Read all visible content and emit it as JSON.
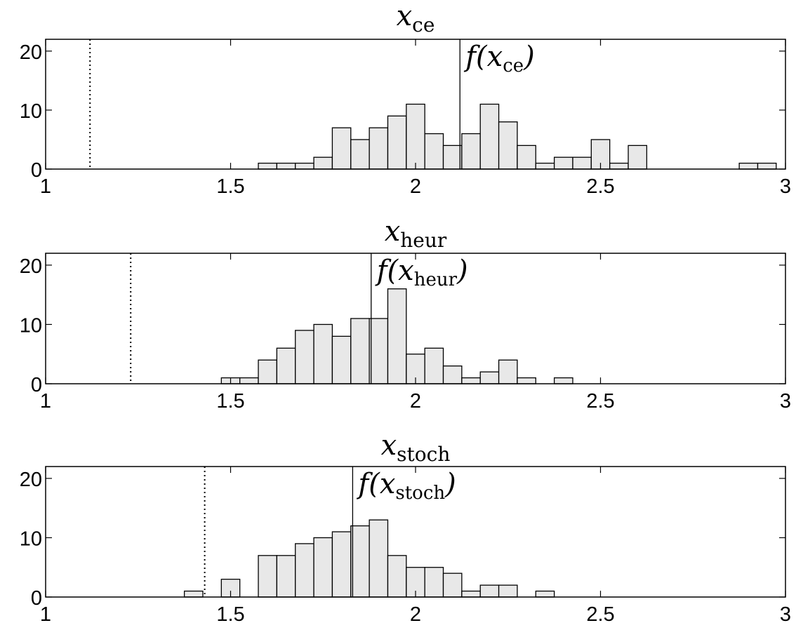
{
  "chart_data": [
    {
      "type": "bar",
      "title": {
        "base": "x",
        "sub": "ce"
      },
      "annotation": {
        "prefix": "f(",
        "base": "x",
        "sub": "ce",
        "suffix": ")"
      },
      "xlim": [
        1,
        3
      ],
      "ylim": [
        0,
        22
      ],
      "xticks": [
        1,
        1.5,
        2,
        2.5,
        3
      ],
      "xtick_labels": [
        "1",
        "1.5",
        "2",
        "2.5",
        "3"
      ],
      "yticks": [
        0,
        10,
        20
      ],
      "ytick_labels": [
        "0",
        "10",
        "20"
      ],
      "bin_width": 0.05,
      "bin_centers": [
        1.6,
        1.65,
        1.7,
        1.75,
        1.8,
        1.85,
        1.9,
        1.95,
        2.0,
        2.05,
        2.1,
        2.15,
        2.2,
        2.25,
        2.3,
        2.35,
        2.4,
        2.45,
        2.5,
        2.55,
        2.6,
        2.9,
        2.95
      ],
      "counts": [
        1,
        1,
        1,
        2,
        7,
        5,
        7,
        9,
        11,
        6,
        4,
        6,
        11,
        8,
        4,
        1,
        2,
        2,
        5,
        1,
        4,
        1,
        1
      ],
      "solid_line_x": 2.12,
      "dotted_line_x": 1.12
    },
    {
      "type": "bar",
      "title": {
        "base": "x",
        "sub": "heur"
      },
      "annotation": {
        "prefix": "f(",
        "base": "x",
        "sub": "heur",
        "suffix": ")"
      },
      "xlim": [
        1,
        3
      ],
      "ylim": [
        0,
        22
      ],
      "xticks": [
        1,
        1.5,
        2,
        2.5,
        3
      ],
      "xtick_labels": [
        "1",
        "1.5",
        "2",
        "2.5",
        "3"
      ],
      "yticks": [
        0,
        10,
        20
      ],
      "ytick_labels": [
        "0",
        "10",
        "20"
      ],
      "bin_width": 0.05,
      "bin_centers": [
        1.5,
        1.55,
        1.6,
        1.65,
        1.7,
        1.75,
        1.8,
        1.85,
        1.9,
        1.95,
        2.0,
        2.05,
        2.1,
        2.15,
        2.2,
        2.25,
        2.3,
        2.4
      ],
      "counts": [
        1,
        1,
        4,
        6,
        9,
        10,
        8,
        11,
        11,
        16,
        5,
        6,
        3,
        1,
        2,
        4,
        1,
        1
      ],
      "solid_line_x": 1.88,
      "dotted_line_x": 1.23
    },
    {
      "type": "bar",
      "title": {
        "base": "x",
        "sub": "stoch"
      },
      "annotation": {
        "prefix": "f(",
        "base": "x",
        "sub": "stoch",
        "suffix": ")"
      },
      "xlim": [
        1,
        3
      ],
      "ylim": [
        0,
        22
      ],
      "xticks": [
        1,
        1.5,
        2,
        2.5,
        3
      ],
      "xtick_labels": [
        "1",
        "1.5",
        "2",
        "2.5",
        "3"
      ],
      "yticks": [
        0,
        10,
        20
      ],
      "ytick_labels": [
        "0",
        "10",
        "20"
      ],
      "bin_width": 0.05,
      "bin_centers": [
        1.4,
        1.5,
        1.6,
        1.65,
        1.7,
        1.75,
        1.8,
        1.85,
        1.9,
        1.95,
        2.0,
        2.05,
        2.1,
        2.15,
        2.2,
        2.25,
        2.35
      ],
      "counts": [
        1,
        3,
        7,
        7,
        9,
        10,
        11,
        12,
        13,
        7,
        5,
        5,
        4,
        1,
        2,
        2,
        1
      ],
      "solid_line_x": 1.83,
      "dotted_line_x": 1.43
    }
  ]
}
